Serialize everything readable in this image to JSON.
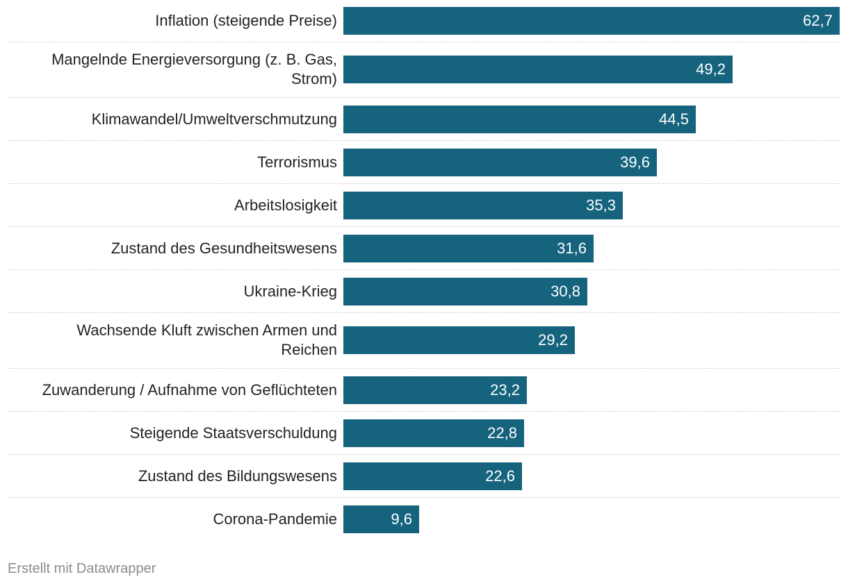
{
  "chart_data": {
    "type": "bar",
    "orientation": "horizontal",
    "categories": [
      "Inflation (steigende Preise)",
      "Mangelnde Energieversorgung (z. B. Gas, Strom)",
      "Klimawandel/Umweltverschmutzung",
      "Terrorismus",
      "Arbeitslosigkeit",
      "Zustand des Gesundheitswesens",
      "Ukraine-Krieg",
      "Wachsende Kluft zwischen Armen und Reichen",
      "Zuwanderung / Aufnahme von Geflüchteten",
      "Steigende Staatsverschuldung",
      "Zustand des Bildungswesens",
      "Corona-Pandemie"
    ],
    "values": [
      62.7,
      49.2,
      44.5,
      39.6,
      35.3,
      31.6,
      30.8,
      29.2,
      23.2,
      22.8,
      22.6,
      9.6
    ],
    "value_labels": [
      "62,7",
      "49,2",
      "44,5",
      "39,6",
      "35,3",
      "31,6",
      "30,8",
      "29,2",
      "23,2",
      "22,8",
      "22,6",
      "9,6"
    ],
    "xlim": [
      0,
      62.7
    ],
    "color": "#16637e",
    "title": "",
    "xlabel": "",
    "ylabel": ""
  },
  "footer": {
    "credit": "Erstellt mit Datawrapper"
  }
}
